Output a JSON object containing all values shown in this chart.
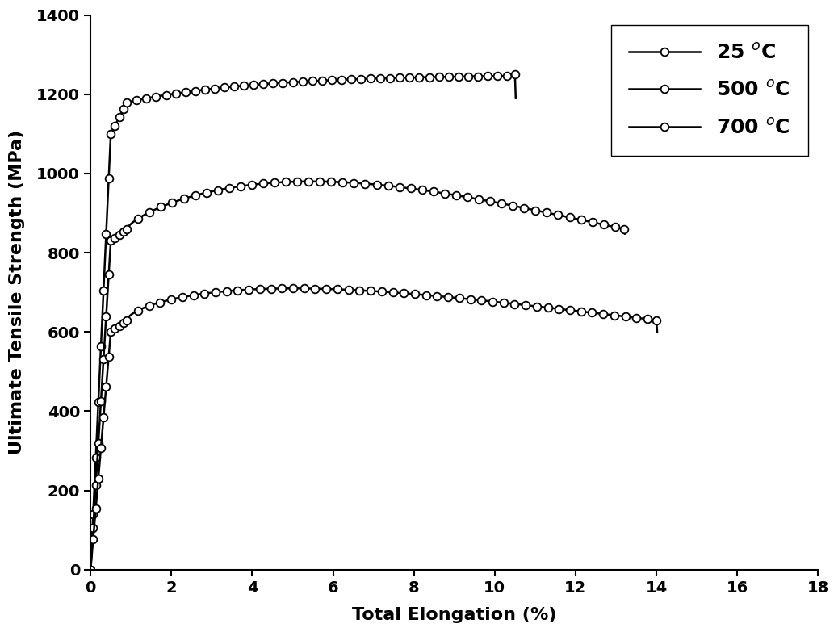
{
  "xlabel": "Total Elongation (%)",
  "ylabel": "Ultimate Tensile Strength (MPa)",
  "xlim": [
    0,
    18
  ],
  "ylim": [
    0,
    1400
  ],
  "xticks": [
    0,
    2,
    4,
    6,
    8,
    10,
    12,
    14,
    16,
    18
  ],
  "yticks": [
    0,
    200,
    400,
    600,
    800,
    1000,
    1200,
    1400
  ],
  "legend_labels": [
    "25 $^o$C",
    "500 $^o$C",
    "700 $^o$C"
  ],
  "background_color": "#ffffff",
  "line_color": "#000000"
}
